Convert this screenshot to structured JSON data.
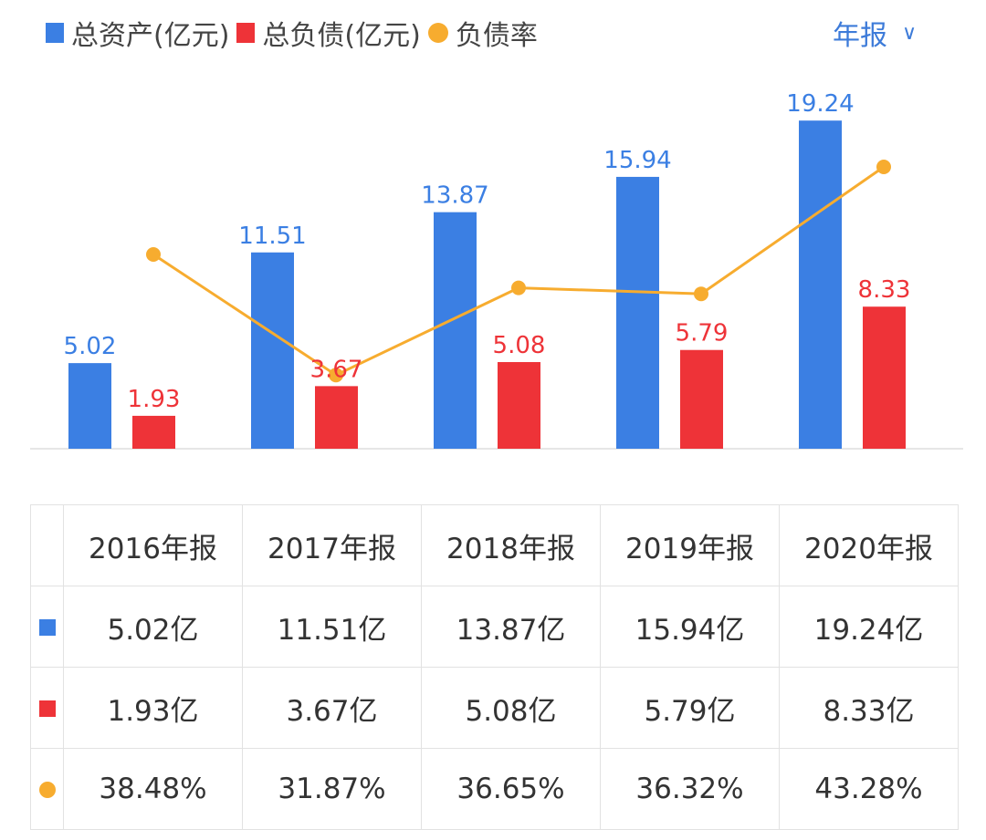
{
  "legend": [
    {
      "label": "总资产(亿元)",
      "color": "#3b7fe3"
    },
    {
      "label": "总负债(亿元)",
      "color": "#ee3338"
    },
    {
      "label": "负债率",
      "color": "#f7ac2f"
    }
  ],
  "period_selector": {
    "label": "年报",
    "icon": "chevron-down-icon"
  },
  "chart_data": {
    "type": "bar",
    "categories": [
      "2016年报",
      "2017年报",
      "2018年报",
      "2019年报",
      "2020年报"
    ],
    "series": [
      {
        "name": "总资产(亿元)",
        "type": "bar",
        "color": "#3b7fe3",
        "values": [
          5.02,
          11.51,
          13.87,
          15.94,
          19.24
        ],
        "labels": [
          "5.02",
          "11.51",
          "13.87",
          "15.94",
          "19.24"
        ]
      },
      {
        "name": "总负债(亿元)",
        "type": "bar",
        "color": "#ee3338",
        "values": [
          1.93,
          3.67,
          5.08,
          5.79,
          8.33
        ],
        "labels": [
          "1.93",
          "3.67",
          "5.08",
          "5.79",
          "8.33"
        ]
      },
      {
        "name": "负债率",
        "type": "line",
        "color": "#f7ac2f",
        "values": [
          38.48,
          31.87,
          36.65,
          36.32,
          43.28
        ]
      }
    ],
    "grid": false
  },
  "table": {
    "headers": [
      "2016年报",
      "2017年报",
      "2018年报",
      "2019年报",
      "2020年报"
    ],
    "rows": [
      {
        "marker": "square",
        "color": "#3b7fe3",
        "cells": [
          "5.02亿",
          "11.51亿",
          "13.87亿",
          "15.94亿",
          "19.24亿"
        ]
      },
      {
        "marker": "square",
        "color": "#ee3338",
        "cells": [
          "1.93亿",
          "3.67亿",
          "5.08亿",
          "5.79亿",
          "8.33亿"
        ]
      },
      {
        "marker": "circle",
        "color": "#f7ac2f",
        "cells": [
          "38.48%",
          "31.87%",
          "36.65%",
          "36.32%",
          "43.28%"
        ]
      }
    ]
  }
}
